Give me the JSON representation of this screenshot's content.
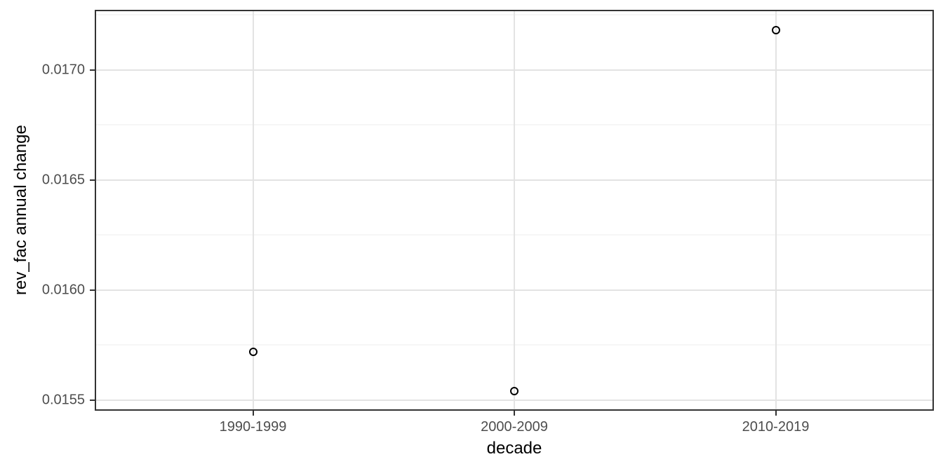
{
  "chart_data": {
    "type": "scatter",
    "title": "",
    "xlabel": "decade",
    "ylabel": "rev_fac annual change",
    "categories": [
      "1990-1999",
      "2000-2009",
      "2010-2019"
    ],
    "values": [
      0.01572,
      0.01554,
      0.01718
    ],
    "ylim": [
      0.015458,
      0.017266
    ],
    "y_major_ticks": [
      0.0155,
      0.016,
      0.0165,
      0.017
    ],
    "y_tick_labels": [
      "0.0155",
      "0.0160",
      "0.0165",
      "0.0170"
    ],
    "y_minor_ticks": [
      0.01575,
      0.01625,
      0.01675,
      0.01725
    ],
    "grid": "horizontal major+minor, vertical major at categories",
    "legend": "none",
    "point_style": "open-circle",
    "colors": {
      "background": "#ffffff",
      "panel_border": "#333333",
      "grid_major": "#e3e3e3",
      "grid_minor": "#ededed",
      "tick_label": "#4d4d4d",
      "axis_title": "#000000",
      "point_stroke": "#000000"
    }
  }
}
